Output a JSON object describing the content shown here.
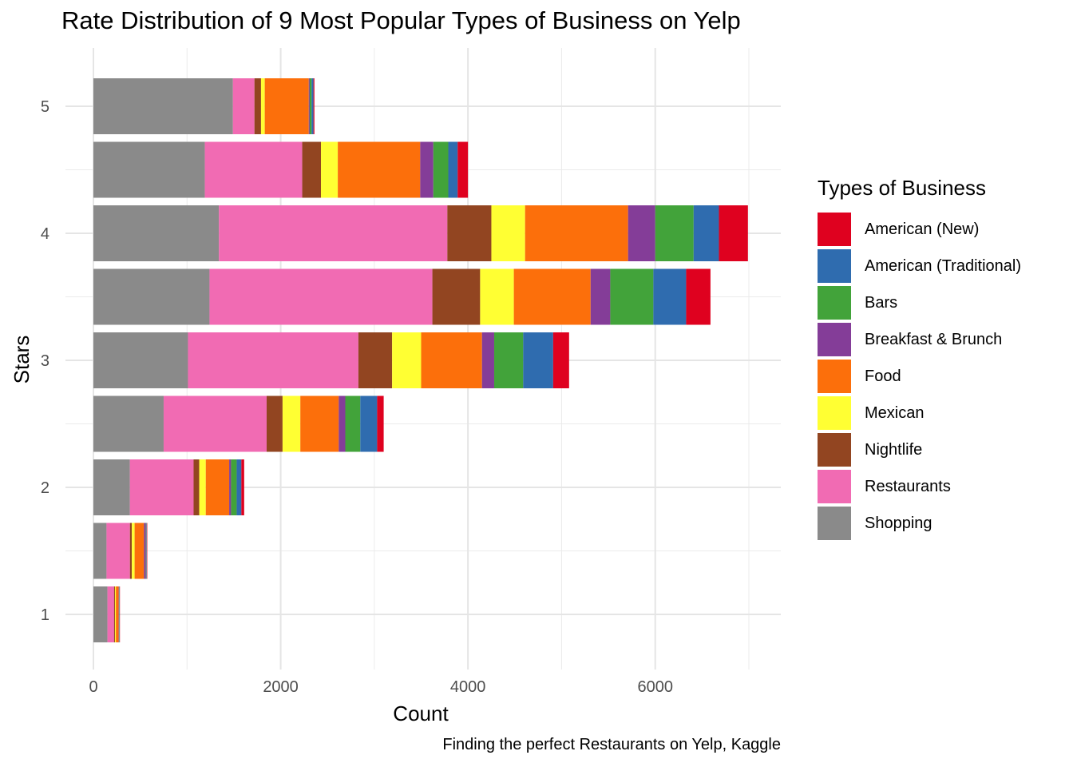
{
  "title": "Rate Distribution of 9 Most Popular Types of Business on Yelp",
  "caption": "Finding the perfect Restaurants on Yelp, Kaggle",
  "chart_data": {
    "type": "bar",
    "orientation": "horizontal",
    "stacked": true,
    "xlabel": "Count",
    "ylabel": "Stars",
    "xlim": [
      0,
      7300
    ],
    "ylim": [
      0.6,
      5.4
    ],
    "x_ticks": [
      0,
      2000,
      4000,
      6000
    ],
    "y_ticks": [
      1,
      2,
      3,
      4,
      5
    ],
    "grid": true,
    "legend_position": "right",
    "legend_title": "Types of Business",
    "categories": [
      1,
      1.5,
      2,
      2.5,
      3,
      3.5,
      4,
      4.5,
      5
    ],
    "series": [
      {
        "name": "Shopping",
        "color": "#8A8A8A",
        "values": [
          150,
          140,
          390,
          750,
          1010,
          1240,
          1340,
          1190,
          1490
        ]
      },
      {
        "name": "Restaurants",
        "color": "#F16BB3",
        "values": [
          70,
          250,
          680,
          1100,
          1820,
          2380,
          2440,
          1040,
          230
        ]
      },
      {
        "name": "Nightlife",
        "color": "#924521",
        "values": [
          10,
          20,
          60,
          170,
          360,
          510,
          470,
          200,
          70
        ]
      },
      {
        "name": "Mexican",
        "color": "#FFFF33",
        "values": [
          10,
          30,
          70,
          190,
          310,
          360,
          360,
          180,
          40
        ]
      },
      {
        "name": "Food",
        "color": "#FC6F0B",
        "values": [
          30,
          100,
          250,
          410,
          650,
          820,
          1100,
          880,
          470
        ]
      },
      {
        "name": "Breakfast & Brunch",
        "color": "#843D98",
        "values": [
          5,
          20,
          20,
          70,
          130,
          210,
          290,
          140,
          10
        ]
      },
      {
        "name": "Bars",
        "color": "#42A33A",
        "values": [
          3,
          5,
          60,
          160,
          310,
          460,
          410,
          160,
          20
        ]
      },
      {
        "name": "American (Traditional)",
        "color": "#2F6CAF",
        "values": [
          3,
          5,
          50,
          180,
          320,
          350,
          270,
          100,
          20
        ]
      },
      {
        "name": "American (New)",
        "color": "#DF011F",
        "values": [
          2,
          5,
          30,
          70,
          170,
          260,
          310,
          110,
          10
        ]
      }
    ]
  },
  "legend_order": [
    "American (New)",
    "American (Traditional)",
    "Bars",
    "Breakfast & Brunch",
    "Food",
    "Mexican",
    "Nightlife",
    "Restaurants",
    "Shopping"
  ]
}
